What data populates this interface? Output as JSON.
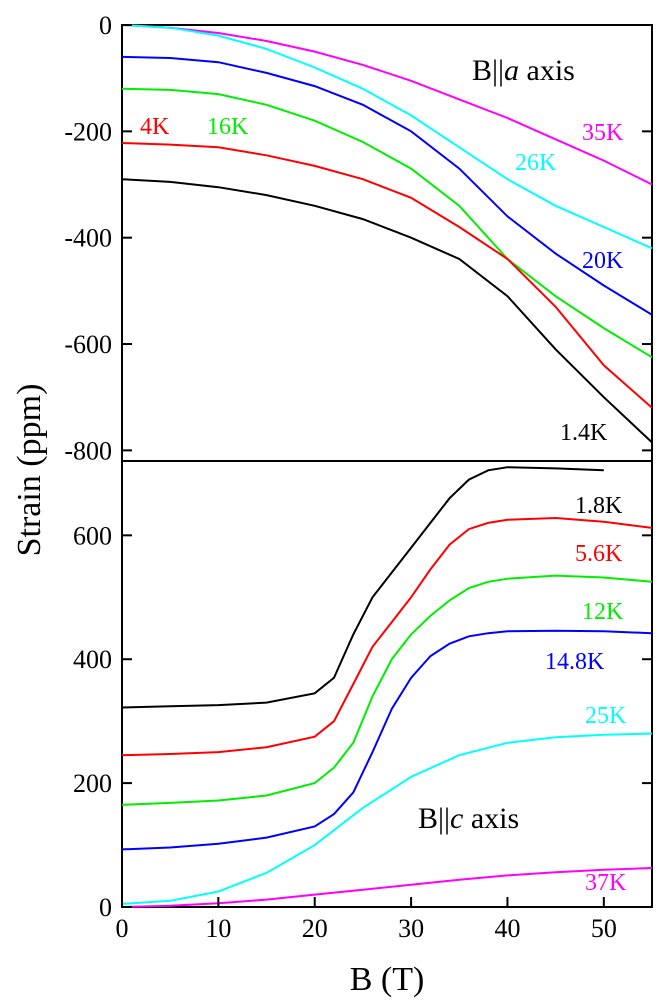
{
  "chart_data": [
    {
      "type": "line",
      "panel": "top",
      "annotation": {
        "prefix": "B||",
        "italic": "a",
        "suffix": " axis"
      },
      "xlim": [
        0,
        55
      ],
      "ylim": [
        -820,
        0
      ],
      "yticks": [
        0,
        -200,
        -400,
        -600,
        -800
      ],
      "ytick_labels": [
        "0",
        "-200",
        "-400",
        "-600",
        "-800"
      ],
      "grid": false,
      "series": [
        {
          "name": "35K",
          "color": "#ff00ff",
          "x": [
            0,
            5,
            10,
            15,
            20,
            25,
            30,
            35,
            40,
            45,
            50,
            55
          ],
          "y": [
            0,
            -5,
            -15,
            -30,
            -50,
            -75,
            -105,
            -140,
            -175,
            -215,
            -255,
            -300
          ]
        },
        {
          "name": "26K",
          "color": "#00ffff",
          "x": [
            0,
            5,
            10,
            15,
            20,
            25,
            30,
            35,
            40,
            45,
            50,
            55
          ],
          "y": [
            0,
            -5,
            -20,
            -45,
            -80,
            -120,
            -170,
            -230,
            -290,
            -340,
            -380,
            -420
          ]
        },
        {
          "name": "20K",
          "color": "#0000ff",
          "x": [
            0,
            5,
            10,
            15,
            20,
            25,
            30,
            35,
            40,
            45,
            50,
            55
          ],
          "y": [
            -60,
            -62,
            -70,
            -90,
            -115,
            -150,
            -200,
            -270,
            -360,
            -430,
            -490,
            -545
          ]
        },
        {
          "name": "16K",
          "color": "#00ee00",
          "x": [
            0,
            5,
            10,
            15,
            20,
            25,
            30,
            35,
            40,
            45,
            50,
            55
          ],
          "y": [
            -120,
            -122,
            -130,
            -150,
            -180,
            -220,
            -270,
            -340,
            -440,
            -510,
            -570,
            -625
          ]
        },
        {
          "name": "4K",
          "color": "#ff0000",
          "x": [
            0,
            5,
            10,
            15,
            20,
            25,
            30,
            35,
            40,
            45,
            50,
            55
          ],
          "y": [
            -222,
            -225,
            -230,
            -245,
            -265,
            -290,
            -325,
            -380,
            -440,
            -530,
            -640,
            -720
          ]
        },
        {
          "name": "1.4K",
          "color": "#000000",
          "x": [
            0,
            5,
            10,
            15,
            20,
            25,
            30,
            35,
            40,
            45,
            50,
            55
          ],
          "y": [
            -290,
            -295,
            -305,
            -320,
            -340,
            -365,
            -400,
            -440,
            -510,
            -610,
            -700,
            -785
          ]
        }
      ],
      "labels": [
        "4K",
        "16K",
        "35K",
        "26K",
        "20K",
        "1.4K"
      ]
    },
    {
      "type": "line",
      "panel": "bottom",
      "annotation": {
        "prefix": "B||",
        "italic": "c",
        "suffix": " axis"
      },
      "xlabel": "B (T)",
      "xlim": [
        0,
        55
      ],
      "xticks": [
        0,
        10,
        20,
        30,
        40,
        50
      ],
      "xtick_labels": [
        "0",
        "10",
        "20",
        "30",
        "40",
        "50"
      ],
      "ylim": [
        0,
        720
      ],
      "yticks": [
        0,
        200,
        400,
        600
      ],
      "ytick_labels": [
        "0",
        "200",
        "400",
        "600"
      ],
      "grid": false,
      "series": [
        {
          "name": "1.8K",
          "color": "#000000",
          "x": [
            0,
            5,
            10,
            15,
            20,
            22,
            24,
            26,
            28,
            30,
            32,
            34,
            36,
            38,
            40,
            45,
            50
          ],
          "y": [
            322,
            324,
            326,
            330,
            345,
            370,
            440,
            500,
            540,
            580,
            620,
            660,
            690,
            705,
            710,
            708,
            705
          ]
        },
        {
          "name": "5.6K",
          "color": "#ff0000",
          "x": [
            0,
            5,
            10,
            15,
            20,
            22,
            24,
            26,
            28,
            30,
            32,
            34,
            36,
            38,
            40,
            45,
            50,
            55
          ],
          "y": [
            245,
            247,
            250,
            258,
            275,
            300,
            360,
            420,
            460,
            500,
            545,
            585,
            610,
            620,
            625,
            628,
            622,
            612
          ]
        },
        {
          "name": "12K",
          "color": "#00ee00",
          "x": [
            0,
            5,
            10,
            15,
            20,
            22,
            24,
            26,
            28,
            30,
            32,
            34,
            36,
            38,
            40,
            45,
            50,
            55
          ],
          "y": [
            165,
            168,
            172,
            180,
            200,
            225,
            265,
            340,
            400,
            440,
            470,
            495,
            515,
            525,
            530,
            535,
            532,
            525
          ]
        },
        {
          "name": "14.8K",
          "color": "#0000ff",
          "x": [
            0,
            5,
            10,
            15,
            20,
            22,
            24,
            26,
            28,
            30,
            32,
            34,
            36,
            38,
            40,
            45,
            50,
            55
          ],
          "y": [
            93,
            96,
            102,
            112,
            130,
            150,
            185,
            250,
            320,
            370,
            405,
            425,
            437,
            442,
            445,
            446,
            445,
            442
          ]
        },
        {
          "name": "25K",
          "color": "#00ffff",
          "x": [
            0,
            5,
            10,
            15,
            20,
            25,
            30,
            35,
            40,
            45,
            50,
            55
          ],
          "y": [
            5,
            10,
            25,
            55,
            100,
            160,
            210,
            245,
            265,
            274,
            278,
            280
          ]
        },
        {
          "name": "37K",
          "color": "#ff00ff",
          "x": [
            0,
            5,
            10,
            15,
            20,
            25,
            30,
            35,
            40,
            45,
            50,
            55
          ],
          "y": [
            0,
            2,
            6,
            12,
            20,
            28,
            36,
            44,
            51,
            56,
            60,
            63
          ]
        }
      ],
      "labels": [
        "1.8K",
        "5.6K",
        "12K",
        "14.8K",
        "25K",
        "37K"
      ]
    }
  ],
  "ylabel": "Strain (ppm)"
}
